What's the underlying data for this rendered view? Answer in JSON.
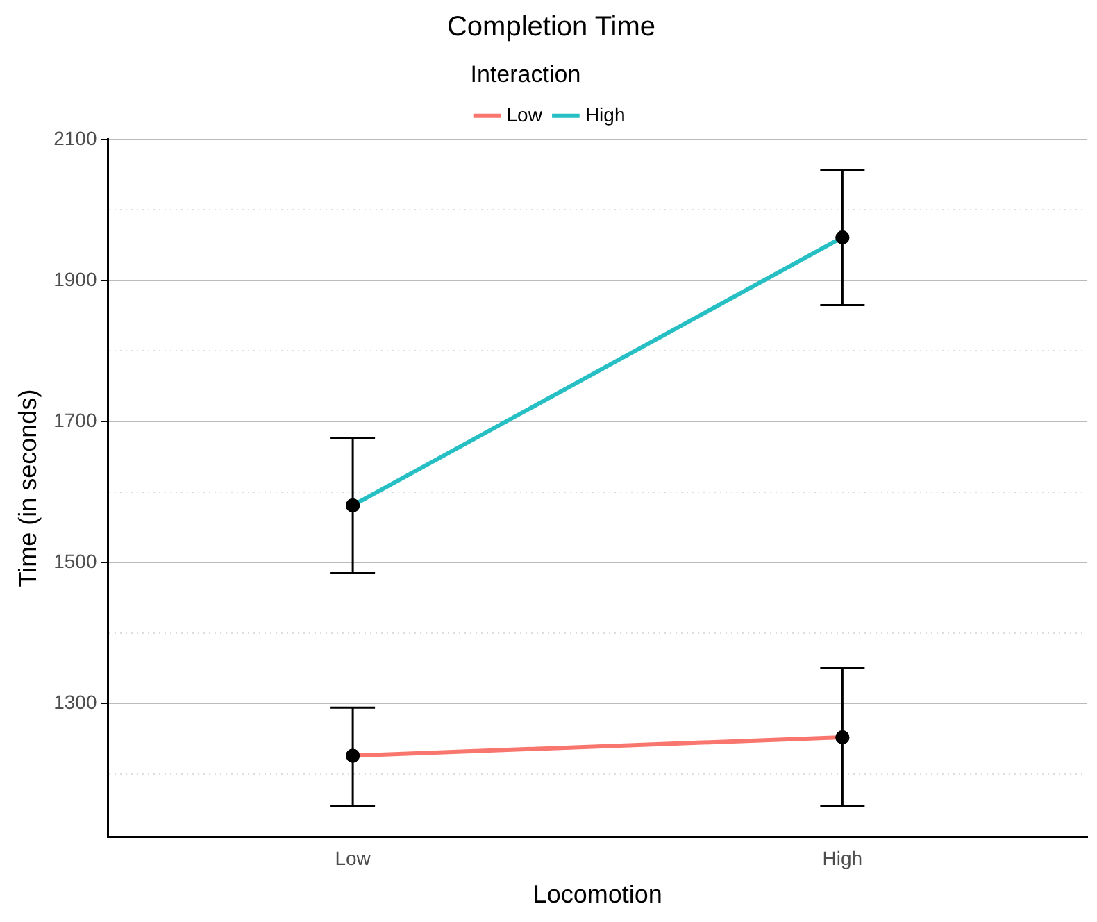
{
  "chart_data": {
    "type": "line",
    "title": "Completion Time",
    "xlabel": "Locomotion",
    "ylabel": "Time (in seconds)",
    "legend_title": "Interaction",
    "legend": "top",
    "marker": "circle",
    "grid": "y",
    "categories": [
      "Low",
      "High"
    ],
    "series": [
      {
        "name": "Low",
        "color": "#f8766d",
        "values": [
          1226,
          1252
        ],
        "errors": [
          [
            1155,
            1294
          ],
          [
            1155,
            1350
          ]
        ]
      },
      {
        "name": "High",
        "color": "#26bfc4",
        "values": [
          1581,
          1961
        ],
        "errors": [
          [
            1485,
            1676
          ],
          [
            1865,
            2056
          ]
        ]
      }
    ],
    "ylim": [
      1111,
      2100
    ],
    "yticks": [
      {
        "value": 1200,
        "label": null
      },
      1300,
      {
        "value": 1400,
        "label": null
      },
      1500,
      {
        "value": 1600,
        "label": null
      },
      1700,
      {
        "value": 1800,
        "label": null
      },
      1900,
      {
        "value": 2000,
        "label": null
      },
      2100
    ]
  }
}
